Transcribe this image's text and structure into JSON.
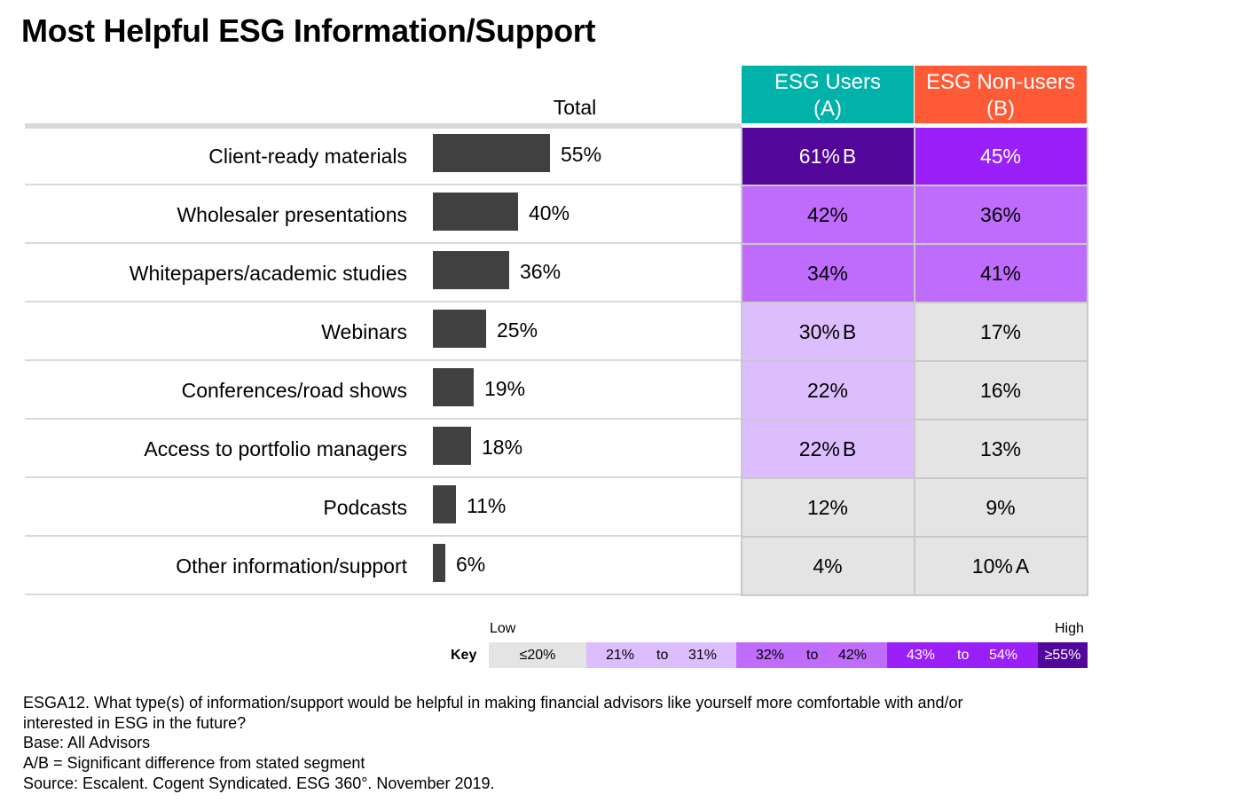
{
  "title": "Most Helpful ESG Information/Support",
  "total_header": "Total",
  "groups": {
    "a": {
      "line1": "ESG Users",
      "line2": "(A)",
      "color": "#00b2a9"
    },
    "b": {
      "line1": "ESG Non-users",
      "line2": "(B)",
      "color": "#ff5a36"
    }
  },
  "chart_data": {
    "type": "bar",
    "orientation": "horizontal",
    "title": "Most Helpful ESG Information/Support",
    "categories": [
      "Client-ready materials",
      "Wholesaler presentations",
      "Whitepapers/academic studies",
      "Webinars",
      "Conferences/road shows",
      "Access to portfolio managers",
      "Podcasts",
      "Other information/support"
    ],
    "series": [
      {
        "name": "Total",
        "values": [
          55,
          40,
          36,
          25,
          19,
          18,
          11,
          6
        ],
        "labels": [
          "55%",
          "40%",
          "36%",
          "25%",
          "19%",
          "18%",
          "11%",
          "6%"
        ],
        "color": "#404040"
      }
    ],
    "xlim": [
      0,
      100
    ],
    "table": {
      "columns": [
        "ESG Users (A)",
        "ESG Non-users (B)"
      ],
      "esg_users": [
        {
          "value": 61,
          "text": "61%",
          "sig": "B"
        },
        {
          "value": 42,
          "text": "42%",
          "sig": ""
        },
        {
          "value": 34,
          "text": "34%",
          "sig": ""
        },
        {
          "value": 30,
          "text": "30%",
          "sig": "B"
        },
        {
          "value": 22,
          "text": "22%",
          "sig": ""
        },
        {
          "value": 22,
          "text": "22%",
          "sig": "B"
        },
        {
          "value": 12,
          "text": "12%",
          "sig": ""
        },
        {
          "value": 4,
          "text": "4%",
          "sig": ""
        }
      ],
      "esg_non_users": [
        {
          "value": 45,
          "text": "45%",
          "sig": ""
        },
        {
          "value": 36,
          "text": "36%",
          "sig": ""
        },
        {
          "value": 41,
          "text": "41%",
          "sig": ""
        },
        {
          "value": 17,
          "text": "17%",
          "sig": ""
        },
        {
          "value": 16,
          "text": "16%",
          "sig": ""
        },
        {
          "value": 13,
          "text": "13%",
          "sig": ""
        },
        {
          "value": 9,
          "text": "9%",
          "sig": ""
        },
        {
          "value": 10,
          "text": "10%",
          "sig": "A"
        }
      ]
    }
  },
  "key": {
    "label": "Key",
    "low": "Low",
    "high": "High",
    "segments": [
      {
        "min": 0,
        "max": 20,
        "from": "≤20%",
        "to_word": "",
        "to": "",
        "color": "#e4e4e4",
        "text_color": "#000000"
      },
      {
        "min": 21,
        "max": 31,
        "from": "21%",
        "to_word": "to",
        "to": "31%",
        "color": "#dcbdfd",
        "text_color": "#000000"
      },
      {
        "min": 32,
        "max": 42,
        "from": "32%",
        "to_word": "to",
        "to": "42%",
        "color": "#bf6cfd",
        "text_color": "#000000"
      },
      {
        "min": 43,
        "max": 54,
        "from": "43%",
        "to_word": "to",
        "to": "54%",
        "color": "#9a1ff9",
        "text_color": "#ffffff"
      },
      {
        "min": 55,
        "max": 100,
        "from": "≥55%",
        "to_word": "",
        "to": "",
        "color": "#52069a",
        "text_color": "#ffffff"
      }
    ]
  },
  "footnotes": [
    "ESGA12. What type(s) of information/support would be helpful in making financial advisors like yourself more comfortable with and/or",
    "interested in ESG in the future?",
    "Base: All Advisors",
    "A/B = Significant difference from stated segment",
    "Source: Escalent. Cogent Syndicated. ESG 360°. November 2019."
  ]
}
